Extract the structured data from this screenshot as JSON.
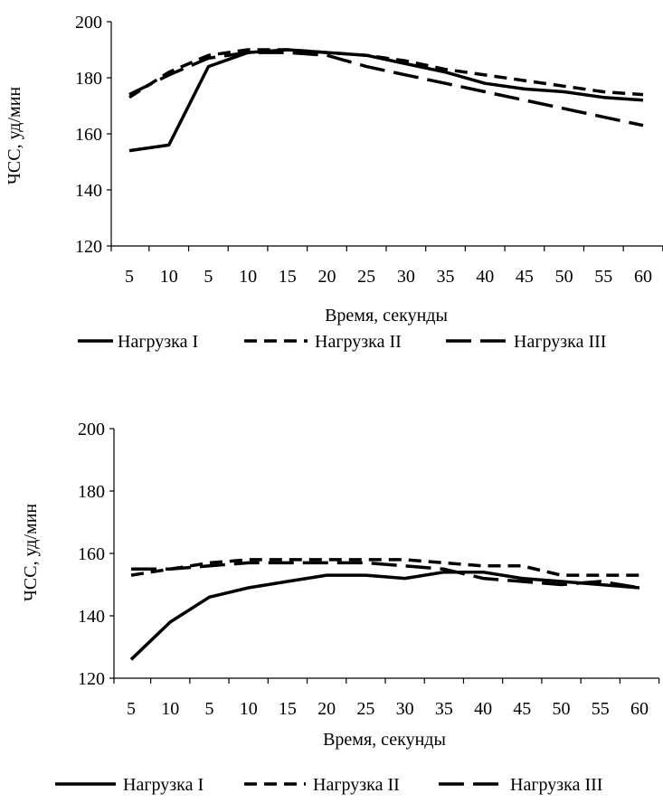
{
  "chart_data": [
    {
      "type": "line",
      "title": "",
      "xlabel": "Время, секунды",
      "ylabel": "ЧСС, уд/мин",
      "categories": [
        "5",
        "10",
        "5",
        "10",
        "15",
        "20",
        "25",
        "30",
        "35",
        "40",
        "45",
        "50",
        "55",
        "60"
      ],
      "ylim": [
        120,
        200
      ],
      "yticks": [
        120,
        140,
        160,
        180,
        200
      ],
      "grid": false,
      "legend_position": "bottom",
      "series": [
        {
          "name": "Нагрузка I",
          "style": "solid",
          "values": [
            154,
            156,
            184,
            189,
            190,
            189,
            188,
            185,
            182,
            178,
            176,
            175,
            173,
            172
          ]
        },
        {
          "name": "Нагрузка II",
          "style": "short-dash",
          "values": [
            173,
            182,
            188,
            190,
            190,
            189,
            188,
            186,
            183,
            181,
            179,
            177,
            175,
            174
          ]
        },
        {
          "name": "Нагрузка  III",
          "style": "long-dash",
          "values": [
            174,
            181,
            187,
            189,
            189,
            188,
            184,
            181,
            178,
            175,
            172,
            169,
            166,
            163
          ]
        }
      ]
    },
    {
      "type": "line",
      "title": "",
      "xlabel": "Время, секунды",
      "ylabel": "ЧСС, уд/мин",
      "categories": [
        "5",
        "10",
        "5",
        "10",
        "15",
        "20",
        "25",
        "30",
        "35",
        "40",
        "45",
        "50",
        "55",
        "60"
      ],
      "ylim": [
        120,
        200
      ],
      "yticks": [
        120,
        140,
        160,
        180,
        200
      ],
      "grid": false,
      "legend_position": "bottom",
      "series": [
        {
          "name": "Нагрузка I",
          "style": "solid",
          "values": [
            126,
            138,
            146,
            149,
            151,
            153,
            153,
            152,
            154,
            154,
            152,
            151,
            150,
            149
          ]
        },
        {
          "name": "Нагрузка II",
          "style": "short-dash",
          "values": [
            153,
            155,
            157,
            158,
            158,
            158,
            158,
            158,
            157,
            156,
            156,
            153,
            153,
            153
          ]
        },
        {
          "name": "Нагрузка III",
          "style": "long-dash",
          "values": [
            155,
            155,
            156,
            157,
            157,
            157,
            157,
            156,
            155,
            152,
            151,
            150,
            151,
            149
          ]
        }
      ]
    }
  ]
}
